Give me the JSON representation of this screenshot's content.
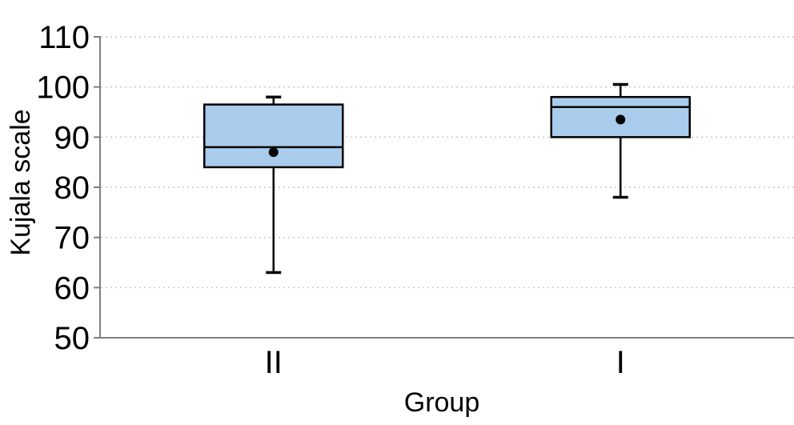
{
  "figure": {
    "background": "#ffffff"
  },
  "chart_data": {
    "type": "boxplot",
    "title": "",
    "xlabel": "Group",
    "ylabel": "Kujala scale",
    "ylim": [
      50,
      110
    ],
    "yticks": [
      50,
      60,
      70,
      80,
      90,
      100,
      110
    ],
    "categories": [
      "II",
      "I"
    ],
    "series": [
      {
        "name": "II",
        "min": 63,
        "q1": 84,
        "median": 88,
        "q3": 96.5,
        "max": 98,
        "mean": 87
      },
      {
        "name": "I",
        "min": 78,
        "q1": 90,
        "median": 96,
        "q3": 98,
        "max": 100.5,
        "mean": 93.5
      }
    ],
    "legend": "none",
    "grid": {
      "horizontal": true,
      "style": "dotted"
    },
    "mean_marker": "filled-circle",
    "colors": {
      "box_fill": "#a9cbec",
      "box_stroke": "#000000",
      "median": "#000000",
      "whisker": "#000000",
      "mean": "#000000",
      "axis": "#7f7f7f",
      "gridline": "#c9c9c9",
      "text": "#000000"
    }
  }
}
